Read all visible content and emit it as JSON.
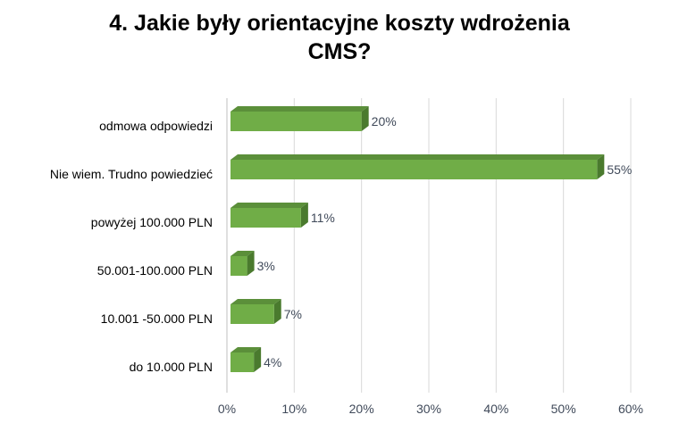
{
  "chart_data": {
    "type": "bar",
    "orientation": "horizontal",
    "style": "3d",
    "title_lines": [
      "4. Jakie były orientacyjne koszty wdrożenia",
      "CMS?"
    ],
    "categories": [
      "odmowa odpowiedzi",
      "Nie wiem. Trudno powiedzieć",
      "powyżej 100.000 PLN",
      "50.001-100.000 PLN",
      "10.001 -50.000 PLN",
      "do 10.000 PLN"
    ],
    "values": [
      20,
      55,
      11,
      3,
      7,
      4
    ],
    "data_labels": [
      "20%",
      "55%",
      "11%",
      "3%",
      "7%",
      "4%"
    ],
    "x_ticks": [
      "0%",
      "10%",
      "20%",
      "30%",
      "40%",
      "50%",
      "60%"
    ],
    "xlim": [
      0,
      60
    ],
    "xlabel": "",
    "ylabel": "",
    "grid": "vertical",
    "legend": "none",
    "colors": {
      "bar_front": "#70ad47",
      "bar_top": "#5b8f3a",
      "bar_side": "#4a7a2e",
      "grid": "#d9d9d9",
      "axis": "#bfbfbf"
    }
  }
}
